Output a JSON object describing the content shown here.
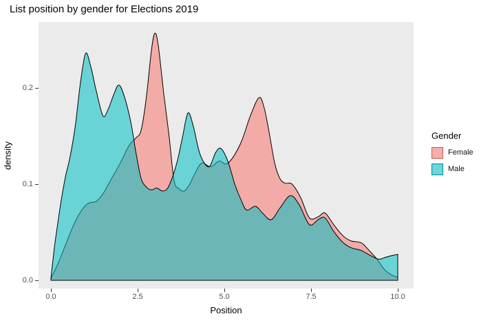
{
  "title": "List position by gender for Elections 2019",
  "axes": {
    "x": {
      "label": "Position",
      "ticks": [
        "0.0",
        "2.5",
        "5.0",
        "7.5",
        "10.0"
      ],
      "tick_values": [
        0,
        2.5,
        5,
        7.5,
        10
      ]
    },
    "y": {
      "label": "density",
      "ticks": [
        "0.0",
        "0.1",
        "0.2"
      ],
      "tick_values": [
        0,
        0.1,
        0.2
      ]
    }
  },
  "legend": {
    "title": "Gender",
    "items": [
      {
        "label": "Female",
        "color": "#F8766D",
        "border": "#C05B54"
      },
      {
        "label": "Male",
        "color": "#00BFC4",
        "border": "#00888C"
      }
    ]
  },
  "colors": {
    "panel_bg": "#EBEBEB",
    "outline": "#000000",
    "fill_alpha": 0.55,
    "tick_text": "#4D4D4D",
    "legend_key_bg": "#F2F2F2"
  },
  "chart_data": {
    "type": "area",
    "subtype": "overlapping-density",
    "title": "List position by gender for Elections 2019",
    "xlabel": "Position",
    "ylabel": "density",
    "xlim": [
      0,
      10
    ],
    "ylim": [
      0,
      0.269
    ],
    "grid": false,
    "legend_position": "right",
    "series": [
      {
        "name": "Female",
        "color": "#F8766D",
        "points": [
          [
            0,
            0.002
          ],
          [
            0.2,
            0.017
          ],
          [
            0.4,
            0.035
          ],
          [
            0.6,
            0.053
          ],
          [
            0.8,
            0.068
          ],
          [
            1.0,
            0.078
          ],
          [
            1.15,
            0.081
          ],
          [
            1.3,
            0.082
          ],
          [
            1.5,
            0.09
          ],
          [
            1.75,
            0.106
          ],
          [
            2.0,
            0.122
          ],
          [
            2.25,
            0.14
          ],
          [
            2.45,
            0.148
          ],
          [
            2.6,
            0.156
          ],
          [
            2.75,
            0.19
          ],
          [
            2.9,
            0.24
          ],
          [
            3.0,
            0.257
          ],
          [
            3.1,
            0.243
          ],
          [
            3.25,
            0.195
          ],
          [
            3.4,
            0.152
          ],
          [
            3.55,
            0.104
          ],
          [
            3.7,
            0.095
          ],
          [
            3.85,
            0.093
          ],
          [
            4.0,
            0.1
          ],
          [
            4.15,
            0.111
          ],
          [
            4.35,
            0.122
          ],
          [
            4.6,
            0.118
          ],
          [
            4.85,
            0.124
          ],
          [
            5.05,
            0.121
          ],
          [
            5.25,
            0.128
          ],
          [
            5.5,
            0.145
          ],
          [
            5.75,
            0.171
          ],
          [
            6.0,
            0.19
          ],
          [
            6.15,
            0.179
          ],
          [
            6.3,
            0.152
          ],
          [
            6.45,
            0.122
          ],
          [
            6.6,
            0.106
          ],
          [
            6.75,
            0.101
          ],
          [
            6.95,
            0.1
          ],
          [
            7.2,
            0.086
          ],
          [
            7.45,
            0.065
          ],
          [
            7.7,
            0.066
          ],
          [
            7.9,
            0.07
          ],
          [
            8.15,
            0.058
          ],
          [
            8.4,
            0.047
          ],
          [
            8.65,
            0.041
          ],
          [
            8.95,
            0.039
          ],
          [
            9.2,
            0.03
          ],
          [
            9.4,
            0.022
          ],
          [
            9.6,
            0.012
          ],
          [
            9.8,
            0.006
          ],
          [
            10,
            0.003
          ]
        ]
      },
      {
        "name": "Male",
        "color": "#00BFC4",
        "points": [
          [
            0,
            0.002
          ],
          [
            0.1,
            0.034
          ],
          [
            0.2,
            0.06
          ],
          [
            0.3,
            0.084
          ],
          [
            0.42,
            0.108
          ],
          [
            0.55,
            0.128
          ],
          [
            0.7,
            0.16
          ],
          [
            0.85,
            0.205
          ],
          [
            1.0,
            0.236
          ],
          [
            1.15,
            0.222
          ],
          [
            1.3,
            0.198
          ],
          [
            1.5,
            0.171
          ],
          [
            1.65,
            0.178
          ],
          [
            1.8,
            0.192
          ],
          [
            1.95,
            0.203
          ],
          [
            2.1,
            0.193
          ],
          [
            2.3,
            0.165
          ],
          [
            2.45,
            0.133
          ],
          [
            2.6,
            0.106
          ],
          [
            2.75,
            0.097
          ],
          [
            2.9,
            0.094
          ],
          [
            3.05,
            0.096
          ],
          [
            3.2,
            0.093
          ],
          [
            3.35,
            0.095
          ],
          [
            3.5,
            0.107
          ],
          [
            3.65,
            0.125
          ],
          [
            3.8,
            0.15
          ],
          [
            3.95,
            0.174
          ],
          [
            4.1,
            0.161
          ],
          [
            4.3,
            0.131
          ],
          [
            4.55,
            0.118
          ],
          [
            4.75,
            0.133
          ],
          [
            4.9,
            0.137
          ],
          [
            5.1,
            0.124
          ],
          [
            5.3,
            0.1
          ],
          [
            5.5,
            0.082
          ],
          [
            5.65,
            0.073
          ],
          [
            5.9,
            0.077
          ],
          [
            6.1,
            0.07
          ],
          [
            6.35,
            0.063
          ],
          [
            6.6,
            0.075
          ],
          [
            6.9,
            0.088
          ],
          [
            7.15,
            0.079
          ],
          [
            7.45,
            0.058
          ],
          [
            7.7,
            0.063
          ],
          [
            7.9,
            0.065
          ],
          [
            8.15,
            0.051
          ],
          [
            8.4,
            0.04
          ],
          [
            8.65,
            0.034
          ],
          [
            8.95,
            0.031
          ],
          [
            9.2,
            0.026
          ],
          [
            9.45,
            0.022
          ],
          [
            9.65,
            0.024
          ],
          [
            9.85,
            0.026
          ],
          [
            10,
            0.027
          ]
        ]
      }
    ]
  }
}
